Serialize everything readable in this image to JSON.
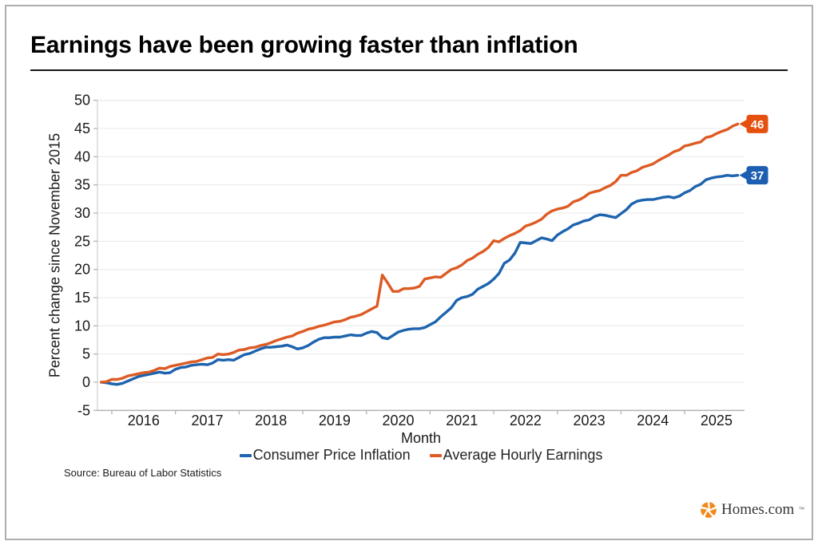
{
  "page": {
    "title": "Earnings have been growing faster than inflation"
  },
  "chart_data": {
    "type": "line",
    "title": "Earnings have been growing faster than inflation",
    "xlabel": "Month",
    "ylabel": "Percent change since November 2015",
    "x_start": "2015-11",
    "x_step_months": 1,
    "xticks": [
      2016,
      2017,
      2018,
      2019,
      2020,
      2021,
      2022,
      2023,
      2024,
      2025
    ],
    "ylim": [
      -5,
      50
    ],
    "ytick_step": 5,
    "grid": "horizontal",
    "legend_position": "bottom",
    "series": [
      {
        "name": "Consumer Price Inflation",
        "color": "#1d63ae",
        "badge_color": "#1b5eb2",
        "end_label": "37",
        "values": [
          0,
          -0.1,
          -0.3,
          -0.4,
          -0.2,
          0.2,
          0.6,
          1,
          1.2,
          1.4,
          1.6,
          1.8,
          1.6,
          1.7,
          2.3,
          2.6,
          2.7,
          3,
          3.1,
          3.2,
          3.1,
          3.4,
          4,
          3.9,
          4,
          3.9,
          4.4,
          4.9,
          5.1,
          5.5,
          5.9,
          6.2,
          6.2,
          6.3,
          6.4,
          6.6,
          6.3,
          5.9,
          6.1,
          6.5,
          7.1,
          7.6,
          7.9,
          7.9,
          8,
          8,
          8.2,
          8.4,
          8.3,
          8.3,
          8.7,
          9,
          8.8,
          7.9,
          7.7,
          8.3,
          8.9,
          9.2,
          9.4,
          9.5,
          9.5,
          9.7,
          10.2,
          10.7,
          11.6,
          12.4,
          13.2,
          14.5,
          15,
          15.2,
          15.6,
          16.5,
          17,
          17.5,
          18.3,
          19.3,
          21.1,
          21.7,
          22.9,
          24.8,
          24.7,
          24.6,
          25.1,
          25.6,
          25.4,
          25.1,
          26.1,
          26.7,
          27.2,
          27.9,
          28.2,
          28.6,
          28.8,
          29.4,
          29.7,
          29.6,
          29.4,
          29.2,
          29.9,
          30.6,
          31.6,
          32.1,
          32.3,
          32.4,
          32.4,
          32.6,
          32.8,
          32.9,
          32.7,
          33,
          33.6,
          34,
          34.7,
          35.1,
          35.9,
          36.2,
          36.4,
          36.5,
          36.7,
          36.6,
          36.7
        ]
      },
      {
        "name": "Average Hourly Earnings",
        "color": "#dd5b24",
        "badge_color": "#e5500e",
        "end_label": "46",
        "values": [
          0,
          0.1,
          0.5,
          0.5,
          0.7,
          1.1,
          1.3,
          1.5,
          1.7,
          1.8,
          2.1,
          2.5,
          2.4,
          2.8,
          3,
          3.2,
          3.4,
          3.6,
          3.7,
          4,
          4.3,
          4.4,
          5,
          4.9,
          5,
          5.3,
          5.7,
          5.8,
          6.1,
          6.2,
          6.5,
          6.7,
          7,
          7.4,
          7.7,
          8,
          8.2,
          8.7,
          9,
          9.4,
          9.6,
          9.9,
          10.1,
          10.4,
          10.7,
          10.8,
          11.1,
          11.5,
          11.7,
          12,
          12.5,
          13,
          13.5,
          19,
          17.6,
          16.1,
          16.1,
          16.6,
          16.6,
          16.7,
          17,
          18.3,
          18.5,
          18.7,
          18.6,
          19.3,
          20,
          20.3,
          20.8,
          21.6,
          22,
          22.7,
          23.2,
          23.9,
          25.1,
          24.9,
          25.5,
          26,
          26.4,
          26.9,
          27.7,
          28,
          28.4,
          28.9,
          29.8,
          30.4,
          30.7,
          30.9,
          31.2,
          32,
          32.3,
          32.8,
          33.5,
          33.8,
          34,
          34.5,
          34.9,
          35.6,
          36.7,
          36.7,
          37.2,
          37.5,
          38.1,
          38.4,
          38.7,
          39.3,
          39.8,
          40.3,
          40.9,
          41.2,
          41.9,
          42.1,
          42.4,
          42.6,
          43.4,
          43.6,
          44.1,
          44.5,
          44.8,
          45.4,
          45.8
        ]
      }
    ]
  },
  "footer": {
    "source": "Source: Bureau of Labor Statistics"
  },
  "branding": {
    "logo_text": "Homes.com",
    "trademark": "™",
    "logo_color": "#f08a1e"
  }
}
